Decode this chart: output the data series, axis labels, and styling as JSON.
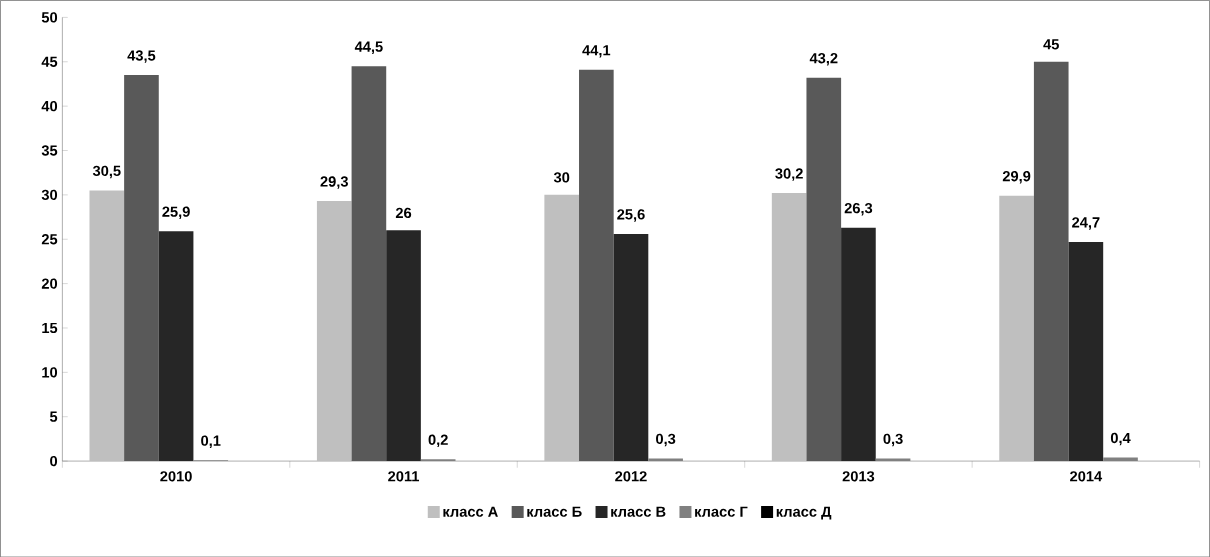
{
  "chart_data": {
    "type": "bar",
    "categories": [
      "2010",
      "2011",
      "2012",
      "2013",
      "2014"
    ],
    "series": [
      {
        "name": "класс А",
        "color": "#bfbfbf",
        "values": [
          30.5,
          29.3,
          30,
          30.2,
          29.9
        ],
        "value_labels": [
          "30,5",
          "29,3",
          "30",
          "30,2",
          "29,9"
        ]
      },
      {
        "name": "класс Б",
        "color": "#595959",
        "values": [
          43.5,
          44.5,
          44.1,
          43.2,
          45
        ],
        "value_labels": [
          "43,5",
          "44,5",
          "44,1",
          "43,2",
          "45"
        ]
      },
      {
        "name": "класс В",
        "color": "#262626",
        "values": [
          25.9,
          26,
          25.6,
          26.3,
          24.7
        ],
        "value_labels": [
          "25,9",
          "26",
          "25,6",
          "26,3",
          "24,7"
        ]
      },
      {
        "name": "класс Г",
        "color": "#808080",
        "values": [
          0.1,
          0.2,
          0.3,
          0.3,
          0.4
        ],
        "value_labels": [
          "0,1",
          "0,2",
          "0,3",
          "0,3",
          "0,4"
        ]
      },
      {
        "name": "класс Д",
        "color": "#000000",
        "values": [
          0,
          0,
          0,
          0,
          0
        ],
        "value_labels": [
          null,
          null,
          null,
          null,
          null
        ]
      }
    ],
    "ylim": [
      0,
      50
    ],
    "yticks": [
      0,
      5,
      10,
      15,
      20,
      25,
      30,
      35,
      40,
      45,
      50
    ],
    "grid": false,
    "legend": "bottom"
  }
}
